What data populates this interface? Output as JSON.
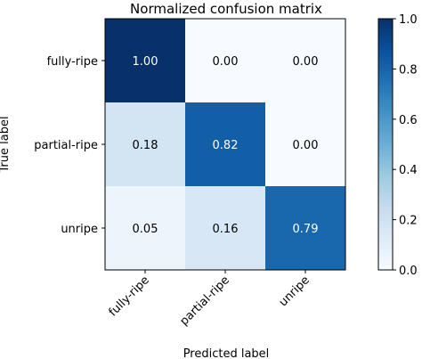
{
  "chart_data": {
    "type": "heatmap",
    "title": "Normalized confusion matrix",
    "xlabel": "Predicted label",
    "ylabel": "True label",
    "x_categories": [
      "fully-ripe",
      "partial-ripe",
      "unripe"
    ],
    "y_categories": [
      "fully-ripe",
      "partial-ripe",
      "unripe"
    ],
    "values": [
      [
        1.0,
        0.0,
        0.0
      ],
      [
        0.18,
        0.82,
        0.0
      ],
      [
        0.05,
        0.16,
        0.79
      ]
    ],
    "value_labels": [
      [
        "1.00",
        "0.00",
        "0.00"
      ],
      [
        "0.18",
        "0.82",
        "0.00"
      ],
      [
        "0.05",
        "0.16",
        "0.79"
      ]
    ],
    "colormap": "Blues",
    "colorbar": {
      "range": [
        0,
        1
      ],
      "ticks": [
        0.0,
        0.2,
        0.4,
        0.6,
        0.8,
        1.0
      ],
      "tick_labels": [
        "0.0",
        "0.2",
        "0.4",
        "0.6",
        "0.8",
        "1.0"
      ]
    },
    "colors": {
      "low": "#f7fbff",
      "high": "#08306b",
      "text_dark": "#000000",
      "text_light": "#ffffff"
    }
  }
}
